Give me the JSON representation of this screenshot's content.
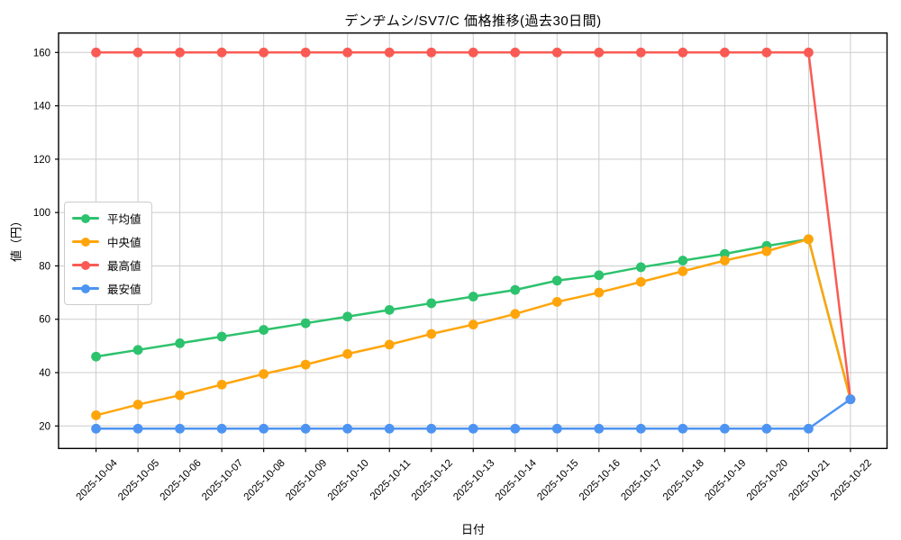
{
  "chart_data": {
    "type": "line",
    "title": "デンヂムシ/SV7/C 価格推移(過去30日間)",
    "xlabel": "日付",
    "ylabel": "値（円）",
    "grid": true,
    "legend_position": "middle-left",
    "ylim": [
      11.5,
      167.5
    ],
    "yticks": [
      20,
      40,
      60,
      80,
      100,
      120,
      140,
      160
    ],
    "categories": [
      "2025-10-04",
      "2025-10-05",
      "2025-10-06",
      "2025-10-07",
      "2025-10-08",
      "2025-10-09",
      "2025-10-10",
      "2025-10-11",
      "2025-10-12",
      "2025-10-13",
      "2025-10-14",
      "2025-10-15",
      "2025-10-16",
      "2025-10-17",
      "2025-10-18",
      "2025-10-19",
      "2025-10-20",
      "2025-10-21",
      "2025-10-22"
    ],
    "series": [
      {
        "name": "平均値",
        "color": "#2dc26d",
        "values": [
          46,
          48.5,
          51,
          53.5,
          56,
          58.5,
          61,
          63.5,
          66,
          68.5,
          71,
          74.5,
          76.5,
          79.5,
          82,
          84.5,
          87.5,
          90,
          30
        ]
      },
      {
        "name": "中央値",
        "color": "#ffa50b",
        "values": [
          24,
          28,
          31.5,
          35.5,
          39.5,
          43,
          47,
          50.5,
          54.5,
          58,
          62,
          66.5,
          70,
          74,
          78,
          82,
          85.5,
          90,
          30
        ]
      },
      {
        "name": "最高値",
        "color": "#f95b54",
        "values": [
          160,
          160,
          160,
          160,
          160,
          160,
          160,
          160,
          160,
          160,
          160,
          160,
          160,
          160,
          160,
          160,
          160,
          160,
          30
        ]
      },
      {
        "name": "最安値",
        "color": "#4d94f2",
        "values": [
          19,
          19,
          19,
          19,
          19,
          19,
          19,
          19,
          19,
          19,
          19,
          19,
          19,
          19,
          19,
          19,
          19,
          19,
          30
        ]
      }
    ],
    "style": {
      "grid_color": "#cccccc",
      "spine_color": "#000000",
      "background": "#ffffff"
    }
  }
}
